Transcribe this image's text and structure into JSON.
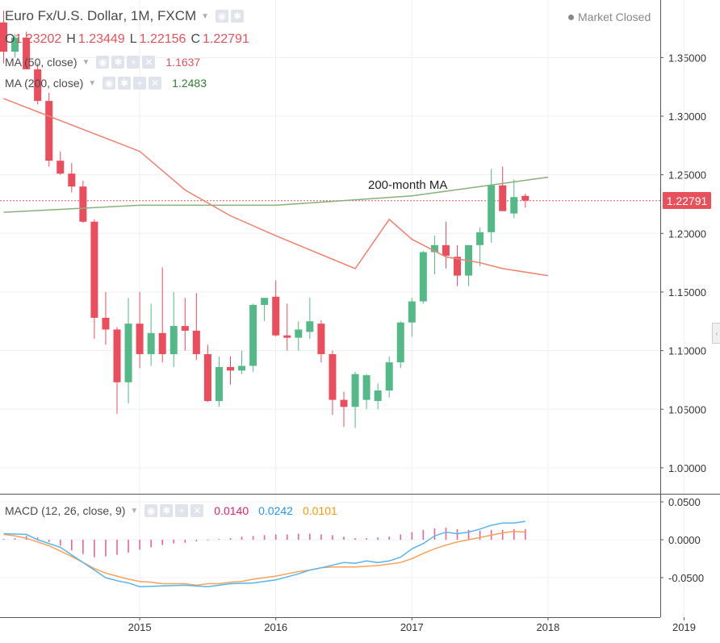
{
  "header": {
    "symbol": "Euro Fx/U.S. Dollar",
    "interval": "1M",
    "exchange": "FXCM",
    "status": "Market Closed",
    "ohlc": {
      "o": "1.23202",
      "h": "1.23449",
      "l": "1.22156",
      "c": "1.22791"
    },
    "ohlc_labels": {
      "o": "O",
      "h": "H",
      "l": "L",
      "c": "C"
    }
  },
  "indicators": {
    "ma50": {
      "label": "MA (50, close)",
      "value": "1.1637",
      "color": "#e8515c"
    },
    "ma200": {
      "label": "MA (200, close)",
      "value": "1.2483",
      "color": "#2e7d32"
    },
    "macd": {
      "label": "MACD (12, 26, close, 9)",
      "hist": "0.0140",
      "macd": "0.0242",
      "signal": "0.0101",
      "hist_color": "#e91e63",
      "macd_color": "#2196f3",
      "signal_color": "#ff9800"
    }
  },
  "last_price": "1.22791",
  "annotation": "200-month MA",
  "colors": {
    "up": "#53b987",
    "down": "#eb4d5c",
    "ma50": "#f08070",
    "ma200": "#88b07a",
    "macd_line": "#55b6ec",
    "signal_line": "#f7a25a",
    "hist": "#f06292"
  },
  "chart_data": {
    "type": "candlestick",
    "title": "Euro Fx/U.S. Dollar, 1M, FXCM",
    "x_ticks": [
      "2015",
      "2016",
      "2017",
      "2018",
      "2019"
    ],
    "x_tick_month_index": [
      12,
      24,
      36,
      48,
      60
    ],
    "y_ticks": [
      "1.35000",
      "1.30000",
      "1.25000",
      "1.20000",
      "1.15000",
      "1.10000",
      "1.05000",
      "1.00000"
    ],
    "ylim": [
      0.96,
      1.38
    ],
    "macd_y_ticks": [
      "0.0500",
      "0.0000",
      "-0.0500"
    ],
    "macd_ylim": [
      -0.11,
      0.065
    ],
    "candles": [
      {
        "m": 0,
        "o": 1.38,
        "h": 1.39,
        "l": 1.345,
        "c": 1.355
      },
      {
        "m": 1,
        "o": 1.355,
        "h": 1.37,
        "l": 1.35,
        "c": 1.367
      },
      {
        "m": 2,
        "o": 1.367,
        "h": 1.372,
        "l": 1.34,
        "c": 1.34
      },
      {
        "m": 3,
        "o": 1.34,
        "h": 1.345,
        "l": 1.31,
        "c": 1.313
      },
      {
        "m": 4,
        "o": 1.313,
        "h": 1.32,
        "l": 1.257,
        "c": 1.262
      },
      {
        "m": 5,
        "o": 1.262,
        "h": 1.27,
        "l": 1.25,
        "c": 1.251
      },
      {
        "m": 6,
        "o": 1.251,
        "h": 1.26,
        "l": 1.235,
        "c": 1.24
      },
      {
        "m": 7,
        "o": 1.24,
        "h": 1.245,
        "l": 1.209,
        "c": 1.21
      },
      {
        "m": 8,
        "o": 1.21,
        "h": 1.212,
        "l": 1.11,
        "c": 1.128
      },
      {
        "m": 9,
        "o": 1.128,
        "h": 1.15,
        "l": 1.105,
        "c": 1.118
      },
      {
        "m": 10,
        "o": 1.118,
        "h": 1.12,
        "l": 1.046,
        "c": 1.073
      },
      {
        "m": 11,
        "o": 1.073,
        "h": 1.145,
        "l": 1.055,
        "c": 1.123
      },
      {
        "m": 12,
        "o": 1.123,
        "h": 1.15,
        "l": 1.085,
        "c": 1.097
      },
      {
        "m": 13,
        "o": 1.097,
        "h": 1.14,
        "l": 1.087,
        "c": 1.115
      },
      {
        "m": 14,
        "o": 1.115,
        "h": 1.171,
        "l": 1.09,
        "c": 1.097
      },
      {
        "m": 15,
        "o": 1.097,
        "h": 1.15,
        "l": 1.086,
        "c": 1.121
      },
      {
        "m": 16,
        "o": 1.121,
        "h": 1.145,
        "l": 1.1,
        "c": 1.117
      },
      {
        "m": 17,
        "o": 1.117,
        "h": 1.149,
        "l": 1.092,
        "c": 1.097
      },
      {
        "m": 18,
        "o": 1.097,
        "h": 1.105,
        "l": 1.056,
        "c": 1.057
      },
      {
        "m": 19,
        "o": 1.057,
        "h": 1.095,
        "l": 1.052,
        "c": 1.086
      },
      {
        "m": 20,
        "o": 1.086,
        "h": 1.095,
        "l": 1.071,
        "c": 1.083
      },
      {
        "m": 21,
        "o": 1.083,
        "h": 1.1,
        "l": 1.08,
        "c": 1.087
      },
      {
        "m": 22,
        "o": 1.087,
        "h": 1.14,
        "l": 1.082,
        "c": 1.139
      },
      {
        "m": 23,
        "o": 1.139,
        "h": 1.145,
        "l": 1.125,
        "c": 1.145
      },
      {
        "m": 24,
        "o": 1.146,
        "h": 1.16,
        "l": 1.112,
        "c": 1.113
      },
      {
        "m": 25,
        "o": 1.113,
        "h": 1.14,
        "l": 1.1,
        "c": 1.111
      },
      {
        "m": 26,
        "o": 1.111,
        "h": 1.125,
        "l": 1.1,
        "c": 1.118
      },
      {
        "m": 27,
        "o": 1.116,
        "h": 1.145,
        "l": 1.11,
        "c": 1.125
      },
      {
        "m": 28,
        "o": 1.123,
        "h": 1.126,
        "l": 1.09,
        "c": 1.097
      },
      {
        "m": 29,
        "o": 1.097,
        "h": 1.1,
        "l": 1.045,
        "c": 1.058
      },
      {
        "m": 30,
        "o": 1.058,
        "h": 1.065,
        "l": 1.035,
        "c": 1.052
      },
      {
        "m": 31,
        "o": 1.052,
        "h": 1.082,
        "l": 1.034,
        "c": 1.08
      },
      {
        "m": 32,
        "o": 1.058,
        "h": 1.08,
        "l": 1.05,
        "c": 1.079
      },
      {
        "m": 33,
        "o": 1.057,
        "h": 1.072,
        "l": 1.05,
        "c": 1.066
      },
      {
        "m": 34,
        "o": 1.066,
        "h": 1.095,
        "l": 1.06,
        "c": 1.09
      },
      {
        "m": 35,
        "o": 1.09,
        "h": 1.125,
        "l": 1.085,
        "c": 1.124
      },
      {
        "m": 36,
        "o": 1.124,
        "h": 1.145,
        "l": 1.112,
        "c": 1.142
      },
      {
        "m": 37,
        "o": 1.142,
        "h": 1.185,
        "l": 1.14,
        "c": 1.184
      },
      {
        "m": 38,
        "o": 1.184,
        "h": 1.198,
        "l": 1.165,
        "c": 1.19
      },
      {
        "m": 39,
        "o": 1.19,
        "h": 1.21,
        "l": 1.17,
        "c": 1.181
      },
      {
        "m": 40,
        "o": 1.18,
        "h": 1.19,
        "l": 1.155,
        "c": 1.164
      },
      {
        "m": 41,
        "o": 1.164,
        "h": 1.19,
        "l": 1.155,
        "c": 1.19
      },
      {
        "m": 42,
        "o": 1.19,
        "h": 1.205,
        "l": 1.172,
        "c": 1.201
      },
      {
        "m": 43,
        "o": 1.201,
        "h": 1.255,
        "l": 1.192,
        "c": 1.241
      },
      {
        "m": 44,
        "o": 1.241,
        "h": 1.257,
        "l": 1.22,
        "c": 1.219
      },
      {
        "m": 45,
        "o": 1.217,
        "h": 1.246,
        "l": 1.213,
        "c": 1.231
      },
      {
        "m": 46,
        "o": 1.232,
        "h": 1.234,
        "l": 1.222,
        "c": 1.228
      }
    ],
    "ma200": [
      [
        0,
        1.218
      ],
      [
        12,
        1.224
      ],
      [
        24,
        1.224
      ],
      [
        30,
        1.228
      ],
      [
        36,
        1.232
      ],
      [
        42,
        1.24
      ],
      [
        48,
        1.248
      ]
    ],
    "ma50": [
      [
        0,
        1.315
      ],
      [
        4,
        1.3
      ],
      [
        8,
        1.285
      ],
      [
        12,
        1.27
      ],
      [
        16,
        1.237
      ],
      [
        20,
        1.215
      ],
      [
        24,
        1.198
      ],
      [
        28,
        1.182
      ],
      [
        31,
        1.17
      ],
      [
        34,
        1.212
      ],
      [
        36,
        1.195
      ],
      [
        39,
        1.18
      ],
      [
        42,
        1.175
      ],
      [
        44,
        1.17
      ],
      [
        48,
        1.164
      ]
    ],
    "macd_line": [
      [
        0,
        0.008
      ],
      [
        2,
        0.007
      ],
      [
        3,
        0.0
      ],
      [
        5,
        -0.01
      ],
      [
        7,
        -0.03
      ],
      [
        9,
        -0.05
      ],
      [
        10,
        -0.054
      ],
      [
        11,
        -0.057
      ],
      [
        12,
        -0.062
      ],
      [
        14,
        -0.061
      ],
      [
        16,
        -0.06
      ],
      [
        18,
        -0.062
      ],
      [
        20,
        -0.058
      ],
      [
        22,
        -0.057
      ],
      [
        24,
        -0.053
      ],
      [
        26,
        -0.045
      ],
      [
        27,
        -0.04
      ],
      [
        28,
        -0.037
      ],
      [
        30,
        -0.03
      ],
      [
        31,
        -0.031
      ],
      [
        32,
        -0.028
      ],
      [
        33,
        -0.03
      ],
      [
        34,
        -0.028
      ],
      [
        35,
        -0.023
      ],
      [
        36,
        -0.012
      ],
      [
        37,
        -0.005
      ],
      [
        38,
        0.005
      ],
      [
        39,
        0.01
      ],
      [
        40,
        0.008
      ],
      [
        41,
        0.01
      ],
      [
        42,
        0.014
      ],
      [
        43,
        0.019
      ],
      [
        44,
        0.022
      ],
      [
        45,
        0.022
      ],
      [
        46,
        0.0242
      ]
    ],
    "signal_line": [
      [
        0,
        0.007
      ],
      [
        1,
        0.005
      ],
      [
        2,
        0.002
      ],
      [
        3,
        -0.003
      ],
      [
        4,
        -0.008
      ],
      [
        5,
        -0.015
      ],
      [
        6,
        -0.022
      ],
      [
        7,
        -0.03
      ],
      [
        8,
        -0.038
      ],
      [
        9,
        -0.044
      ],
      [
        10,
        -0.048
      ],
      [
        11,
        -0.052
      ],
      [
        12,
        -0.055
      ],
      [
        13,
        -0.056
      ],
      [
        14,
        -0.058
      ],
      [
        15,
        -0.058
      ],
      [
        16,
        -0.058
      ],
      [
        17,
        -0.06
      ],
      [
        18,
        -0.058
      ],
      [
        19,
        -0.058
      ],
      [
        20,
        -0.056
      ],
      [
        21,
        -0.055
      ],
      [
        22,
        -0.052
      ],
      [
        23,
        -0.05
      ],
      [
        24,
        -0.048
      ],
      [
        25,
        -0.045
      ],
      [
        26,
        -0.042
      ],
      [
        27,
        -0.04
      ],
      [
        28,
        -0.037
      ],
      [
        29,
        -0.036
      ],
      [
        30,
        -0.036
      ],
      [
        31,
        -0.036
      ],
      [
        32,
        -0.035
      ],
      [
        33,
        -0.034
      ],
      [
        34,
        -0.032
      ],
      [
        35,
        -0.03
      ],
      [
        36,
        -0.025
      ],
      [
        37,
        -0.018
      ],
      [
        38,
        -0.012
      ],
      [
        39,
        -0.007
      ],
      [
        40,
        -0.003
      ],
      [
        41,
        0.0
      ],
      [
        42,
        0.003
      ],
      [
        43,
        0.006
      ],
      [
        44,
        0.009
      ],
      [
        45,
        0.011
      ],
      [
        46,
        0.0101
      ]
    ],
    "macd_hist": [
      [
        0,
        0.001
      ],
      [
        1,
        0.002
      ],
      [
        2,
        0.005
      ],
      [
        3,
        0.003
      ],
      [
        4,
        -0.003
      ],
      [
        5,
        -0.008
      ],
      [
        6,
        -0.014
      ],
      [
        7,
        -0.019
      ],
      [
        8,
        -0.023
      ],
      [
        9,
        -0.022
      ],
      [
        10,
        -0.02
      ],
      [
        11,
        -0.017
      ],
      [
        12,
        -0.013
      ],
      [
        13,
        -0.01
      ],
      [
        14,
        -0.007
      ],
      [
        15,
        -0.005
      ],
      [
        16,
        -0.004
      ],
      [
        17,
        -0.002
      ],
      [
        18,
        -0.001
      ],
      [
        19,
        0.001
      ],
      [
        20,
        0.002
      ],
      [
        21,
        0.004
      ],
      [
        22,
        0.005
      ],
      [
        23,
        0.006
      ],
      [
        24,
        0.007
      ],
      [
        25,
        0.007
      ],
      [
        26,
        0.008
      ],
      [
        27,
        0.008
      ],
      [
        28,
        0.007
      ],
      [
        29,
        0.006
      ],
      [
        30,
        0.004
      ],
      [
        31,
        0.002
      ],
      [
        32,
        0.002
      ],
      [
        33,
        0.003
      ],
      [
        34,
        0.004
      ],
      [
        35,
        0.007
      ],
      [
        36,
        0.01
      ],
      [
        37,
        0.013
      ],
      [
        38,
        0.015
      ],
      [
        39,
        0.016
      ],
      [
        40,
        0.014
      ],
      [
        41,
        0.013
      ],
      [
        42,
        0.012
      ],
      [
        43,
        0.013
      ],
      [
        44,
        0.013
      ],
      [
        45,
        0.014
      ],
      [
        46,
        0.014
      ]
    ]
  }
}
